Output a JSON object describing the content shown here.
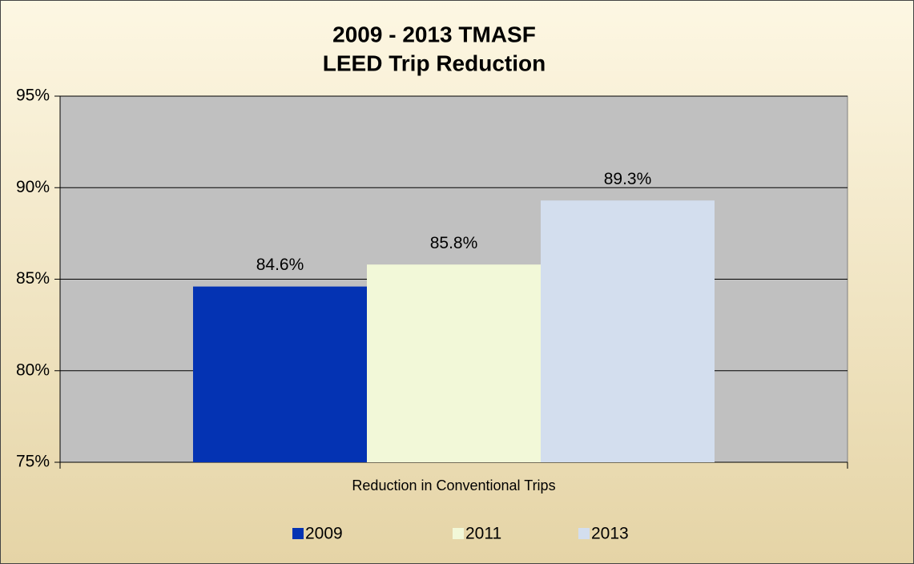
{
  "chart_data": {
    "type": "bar",
    "title": [
      "2009 - 2013 TMASF",
      "LEED Trip Reduction"
    ],
    "categories": [
      "Reduction in Conventional Trips"
    ],
    "series": [
      {
        "name": "2009",
        "color": "#0433b3",
        "values": [
          84.6
        ],
        "value_labels": [
          "84.6%"
        ]
      },
      {
        "name": "2011",
        "color": "#f2f8d8",
        "values": [
          85.8
        ],
        "value_labels": [
          "85.8%"
        ]
      },
      {
        "name": "2013",
        "color": "#d3deee",
        "values": [
          89.3
        ],
        "value_labels": [
          "89.3%"
        ]
      }
    ],
    "ylim": [
      75,
      95
    ],
    "yticks": [
      {
        "value": 75,
        "label": "75%"
      },
      {
        "value": 80,
        "label": "80%"
      },
      {
        "value": 85,
        "label": "85%"
      },
      {
        "value": 90,
        "label": "90%"
      },
      {
        "value": 95,
        "label": "95%"
      }
    ],
    "grid": true,
    "legend": "bottom"
  }
}
